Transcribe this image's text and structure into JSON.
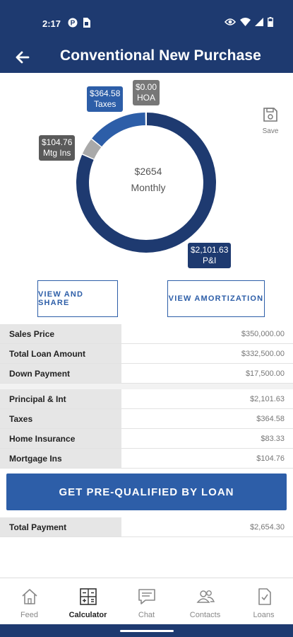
{
  "status_bar": {
    "time": "2:17"
  },
  "header": {
    "title": "Conventional New Purchase"
  },
  "chart_data": {
    "type": "pie",
    "style": "donut",
    "center_value": "$2654",
    "center_label": "Monthly",
    "categories": [
      "P&I",
      "Mtg Ins",
      "Taxes",
      "HOA"
    ],
    "values": [
      2101.63,
      104.76,
      364.58,
      0.0
    ],
    "value_labels": [
      "$2,101.63",
      "$104.76",
      "$364.58",
      "$0.00"
    ],
    "colors": [
      "#1e3a70",
      "#5a5a5a",
      "#2d5ea8",
      "#777777"
    ],
    "segment_colors": [
      "#1e3a70",
      "#a9a9a9",
      "#2d5ea8",
      "#cccccc"
    ]
  },
  "save": {
    "label": "Save"
  },
  "buttons": {
    "view_share": "VIEW AND SHARE",
    "view_amortization": "VIEW AMORTIZATION",
    "prequalify": "GET PRE-QUALIFIED BY LOAN"
  },
  "loan_table": [
    {
      "label": "Sales Price",
      "value": "$350,000.00"
    },
    {
      "label": "Total Loan Amount",
      "value": "$332,500.00"
    },
    {
      "label": "Down Payment",
      "value": "$17,500.00"
    }
  ],
  "payment_table": [
    {
      "label": "Principal & Int",
      "value": "$2,101.63"
    },
    {
      "label": "Taxes",
      "value": "$364.58"
    },
    {
      "label": "Home Insurance",
      "value": "$83.33"
    },
    {
      "label": "Mortgage Ins",
      "value": "$104.76"
    }
  ],
  "total": {
    "label": "Total Payment",
    "value": "$2,654.30"
  },
  "nav": [
    {
      "label": "Feed",
      "icon": "home-icon"
    },
    {
      "label": "Calculator",
      "icon": "calculator-icon"
    },
    {
      "label": "Chat",
      "icon": "chat-icon"
    },
    {
      "label": "Contacts",
      "icon": "contacts-icon"
    },
    {
      "label": "Loans",
      "icon": "loans-icon"
    }
  ],
  "nav_active": "Calculator"
}
